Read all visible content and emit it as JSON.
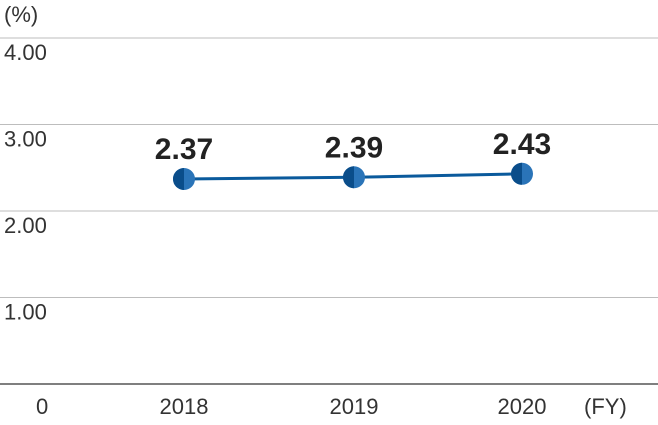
{
  "chart_data": {
    "type": "line",
    "title": "",
    "xlabel": "(FY)",
    "ylabel": "(%)",
    "categories": [
      "2018",
      "2019",
      "2020"
    ],
    "series": [
      {
        "values": [
          2.37,
          2.39,
          2.43
        ],
        "data_labels": [
          "2.37",
          "2.39",
          "2.43"
        ],
        "color": "#0a5a9c"
      }
    ],
    "ylim": [
      0,
      4
    ],
    "yticks": [
      {
        "value": 0,
        "label": "0"
      },
      {
        "value": 1,
        "label": "1.00"
      },
      {
        "value": 2,
        "label": "2.00"
      },
      {
        "value": 3,
        "label": "3.00"
      },
      {
        "value": 4,
        "label": "4.00"
      }
    ],
    "grid": true,
    "colors": {
      "line": "#0a5a9c",
      "marker_dark": "#0a4d8a",
      "marker_light": "#2a74b8",
      "grid": "#bdbdbd",
      "axis": "#555555"
    }
  }
}
